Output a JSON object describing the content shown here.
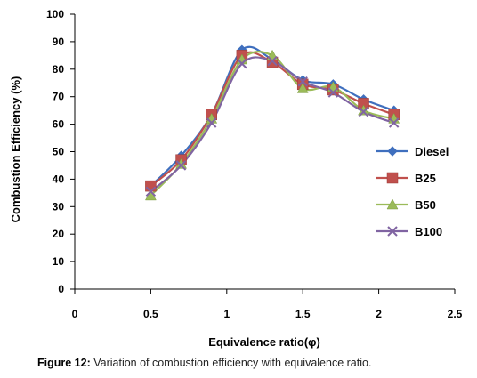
{
  "figure": {
    "caption_label": "Figure 12:",
    "caption_text": " Variation of combustion efficiency with equivalence ratio."
  },
  "chart_data": {
    "type": "line",
    "title": "",
    "xlabel": "Equivalence ratio(φ)",
    "ylabel": "Combustion Efficiency (%)",
    "xlim": [
      0,
      2.5
    ],
    "ylim": [
      0,
      100
    ],
    "xticks": [
      "0",
      "0.5",
      "1",
      "1.5",
      "2",
      "2.5"
    ],
    "yticks": [
      "0",
      "10",
      "20",
      "30",
      "40",
      "50",
      "60",
      "70",
      "80",
      "90",
      "100"
    ],
    "grid": false,
    "legend_position": "right",
    "x": [
      0.5,
      0.7,
      0.9,
      1.1,
      1.3,
      1.5,
      1.7,
      1.9,
      2.1
    ],
    "series": [
      {
        "name": "Diesel",
        "marker": "diamond",
        "color": "#3f6fbe",
        "values": [
          37.5,
          48.5,
          63.5,
          87,
          83.5,
          76,
          74.5,
          69,
          65
        ]
      },
      {
        "name": "B25",
        "marker": "square",
        "color": "#c0504d",
        "values": [
          37.5,
          47,
          63.5,
          85,
          82.5,
          74.5,
          72.5,
          67.5,
          63.5
        ]
      },
      {
        "name": "B50",
        "marker": "triangle",
        "color": "#9bbb59",
        "values": [
          34,
          45.5,
          62,
          83.5,
          85,
          73,
          73.5,
          65,
          62
        ]
      },
      {
        "name": "B100",
        "marker": "x",
        "color": "#8064a2",
        "values": [
          35.5,
          45,
          60.5,
          82,
          83,
          75.5,
          71.5,
          64.5,
          60.5
        ]
      }
    ]
  }
}
